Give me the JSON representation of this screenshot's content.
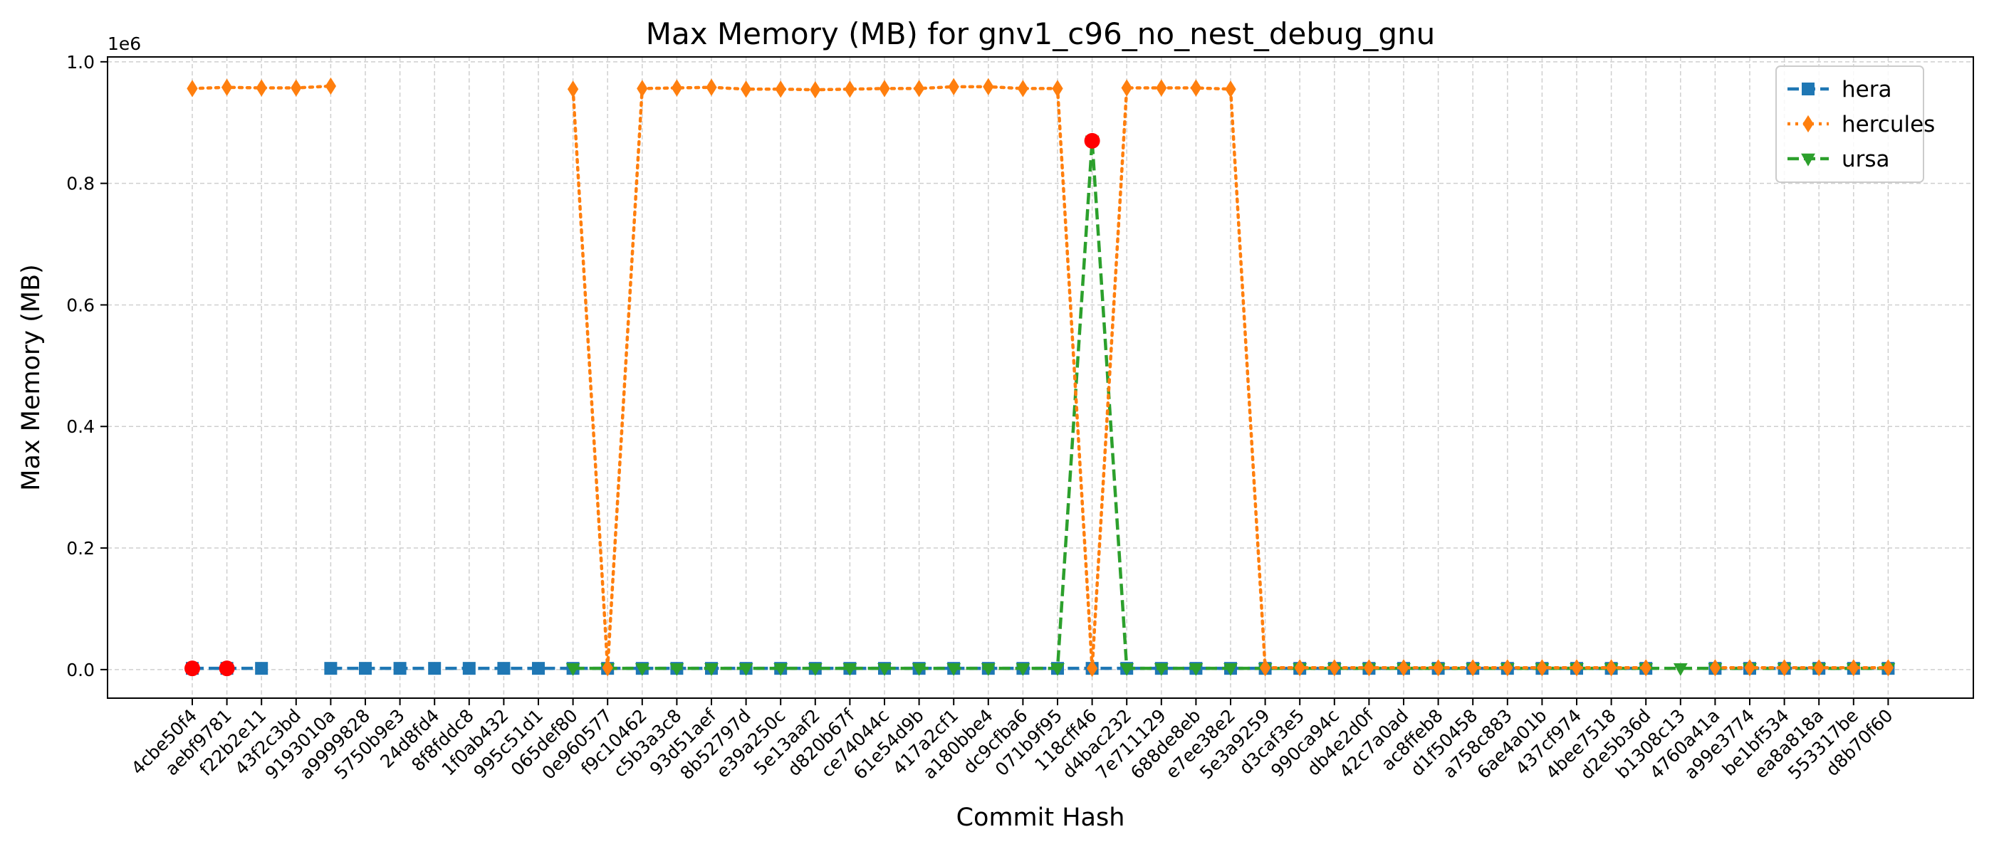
{
  "chart_data": {
    "type": "line",
    "title": "Max Memory (MB) for gnv1_c96_no_nest_debug_gnu",
    "xlabel": "Commit Hash",
    "ylabel": "Max Memory (MB)",
    "y_offset_label": "1e6",
    "ylim": [
      -0.047,
      1.008
    ],
    "yticks": [
      0.0,
      0.2,
      0.4,
      0.6,
      0.8,
      1.0
    ],
    "ytick_labels": [
      "0.0",
      "0.2",
      "0.4",
      "0.6",
      "0.8",
      "1.0"
    ],
    "grid": true,
    "legend_position": "top-right",
    "categories": [
      "4cbe50f4",
      "aebf9781",
      "f22b2e11",
      "43f2c3bd",
      "9193010a",
      "a9999828",
      "5750b9e3",
      "24d8fd4",
      "8f8fddc8",
      "1f0ab432",
      "995c51d1",
      "065def80",
      "0e960577",
      "f9c10462",
      "c5b3a3c8",
      "93d51aef",
      "8b52797d",
      "e39a250c",
      "5e13aaf2",
      "d820b67f",
      "ce74044c",
      "61e54d9b",
      "417a2cf1",
      "a180bbe4",
      "dc9cfba6",
      "071b9f95",
      "118cff46",
      "d4bac232",
      "7e711129",
      "688de8eb",
      "e7ee38e2",
      "5e3a9259",
      "d3caf3e5",
      "990ca94c",
      "db4e2d0f",
      "42c7a0ad",
      "ac8ffeb8",
      "d1f50458",
      "a758c883",
      "6ae4a01b",
      "437cf974",
      "4bee7518",
      "d2e5b36d",
      "b1308c13",
      "4760a41a",
      "a99e3774",
      "be1bf534",
      "ea8a818a",
      "553317be",
      "d8b70f60"
    ],
    "series": [
      {
        "name": "hera",
        "color": "#1f77b4",
        "marker": "square",
        "linestyle": "dashed",
        "values": [
          0.002,
          0.002,
          0.002,
          null,
          0.002,
          0.002,
          0.002,
          0.002,
          0.002,
          0.002,
          0.002,
          0.002,
          0.002,
          0.002,
          0.002,
          0.002,
          0.002,
          0.002,
          0.002,
          0.002,
          0.002,
          0.002,
          0.002,
          0.002,
          0.002,
          0.002,
          0.002,
          0.002,
          0.002,
          0.002,
          0.002,
          0.002,
          0.002,
          0.002,
          0.002,
          0.002,
          0.002,
          0.002,
          0.002,
          0.002,
          0.002,
          0.002,
          0.002,
          null,
          0.002,
          0.002,
          0.002,
          0.002,
          0.002,
          0.002
        ]
      },
      {
        "name": "hercules",
        "color": "#ff7f0e",
        "marker": "diamond",
        "linestyle": "dotted",
        "values": [
          0.956,
          0.958,
          0.957,
          0.957,
          0.96,
          null,
          null,
          null,
          null,
          null,
          null,
          0.955,
          0.003,
          0.956,
          0.957,
          0.958,
          0.955,
          0.955,
          0.954,
          0.955,
          0.956,
          0.956,
          0.959,
          0.959,
          0.956,
          0.956,
          0.002,
          0.957,
          0.957,
          0.957,
          0.955,
          0.003,
          0.003,
          0.003,
          0.003,
          0.003,
          0.003,
          0.003,
          0.003,
          0.003,
          0.003,
          0.003,
          0.003,
          null,
          0.003,
          0.003,
          0.003,
          0.003,
          0.003,
          0.003
        ]
      },
      {
        "name": "ursa",
        "color": "#2ca02c",
        "marker": "triangle-down",
        "linestyle": "dashed",
        "values": [
          null,
          null,
          null,
          null,
          null,
          null,
          null,
          null,
          null,
          null,
          null,
          0.002,
          0.002,
          0.002,
          0.002,
          0.002,
          0.002,
          0.002,
          0.002,
          0.002,
          0.002,
          0.002,
          0.002,
          0.002,
          0.002,
          0.002,
          0.87,
          0.002,
          0.002,
          0.002,
          0.002,
          0.002,
          0.002,
          0.002,
          0.002,
          0.002,
          0.002,
          0.002,
          0.002,
          0.002,
          0.002,
          0.002,
          0.002,
          0.002,
          0.002,
          0.002,
          0.002,
          0.002,
          0.002,
          0.002
        ]
      }
    ],
    "highlight_points": [
      {
        "x": "4cbe50f4",
        "y": 0.002,
        "color": "#ff0000"
      },
      {
        "x": "aebf9781",
        "y": 0.002,
        "color": "#ff0000"
      },
      {
        "x": "118cff46",
        "y": 0.87,
        "color": "#ff0000"
      }
    ]
  }
}
